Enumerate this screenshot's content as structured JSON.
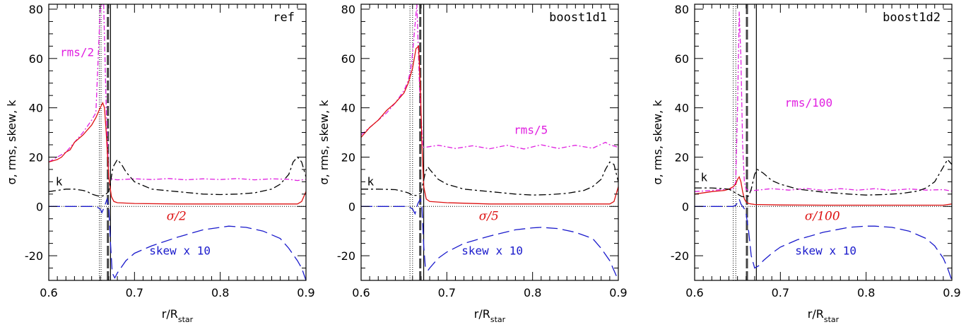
{
  "chart_data": [
    {
      "type": "line",
      "title": "ref",
      "xlabel": "r/R_star",
      "xlabel_main": "r/R",
      "xlabel_sub": "star",
      "ylabel": "σ, rms, skew, k",
      "xlim": [
        0.6,
        0.9
      ],
      "ylim": [
        -30,
        82
      ],
      "xticks": [
        "0.6",
        "0.7",
        "0.8",
        "0.9"
      ],
      "yticks": [
        "-20",
        "0",
        "20",
        "40",
        "60",
        "80"
      ],
      "vlines": [
        {
          "x": 0.659,
          "style": "dotted"
        },
        {
          "x": 0.661,
          "style": "dotted"
        },
        {
          "x": 0.669,
          "style": "dashed-thick"
        },
        {
          "x": 0.672,
          "style": "solid"
        }
      ],
      "zero_line": true,
      "annotations": [
        {
          "text": "rms/2",
          "x": 0.633,
          "y": 61,
          "color": "#e020e0"
        },
        {
          "text": "k",
          "x": 0.612,
          "y": 8.5,
          "color": "#000000"
        },
        {
          "text": "σ/2",
          "x": 0.749,
          "y": -5.5,
          "color": "#dd1111"
        },
        {
          "text": "skew x 10",
          "x": 0.753,
          "y": -19.5,
          "color": "#1a1acc"
        }
      ],
      "series": [
        {
          "name": "rms/2",
          "color": "#e020e0",
          "x": [
            0.6,
            0.61,
            0.62,
            0.63,
            0.64,
            0.65,
            0.655,
            0.66,
            0.662,
            0.664,
            0.667,
            0.67,
            0.675,
            0.68,
            0.7,
            0.72,
            0.74,
            0.76,
            0.78,
            0.8,
            0.82,
            0.84,
            0.86,
            0.88,
            0.89,
            0.9
          ],
          "y": [
            18,
            20,
            22,
            26,
            30,
            35,
            38,
            80,
            82,
            82,
            40,
            11.5,
            11,
            10.8,
            11.2,
            10.9,
            11.3,
            10.8,
            11.2,
            10.9,
            11.3,
            10.8,
            11.2,
            11,
            10.5,
            11
          ]
        },
        {
          "name": "σ/2",
          "color": "#dd1111",
          "x": [
            0.6,
            0.61,
            0.615,
            0.62,
            0.625,
            0.63,
            0.64,
            0.65,
            0.655,
            0.66,
            0.663,
            0.665,
            0.667,
            0.67,
            0.673,
            0.676,
            0.68,
            0.7,
            0.75,
            0.8,
            0.85,
            0.89,
            0.895,
            0.9
          ],
          "y": [
            18,
            19,
            20,
            22,
            23,
            26,
            29,
            33,
            36,
            40,
            42,
            40,
            30,
            12,
            4,
            2,
            1.5,
            1.2,
            1,
            1,
            1,
            1,
            2,
            6
          ]
        },
        {
          "name": "k",
          "color": "#000000",
          "x": [
            0.6,
            0.61,
            0.62,
            0.63,
            0.64,
            0.645,
            0.65,
            0.655,
            0.66,
            0.665,
            0.67,
            0.672,
            0.675,
            0.68,
            0.685,
            0.69,
            0.7,
            0.72,
            0.75,
            0.78,
            0.8,
            0.82,
            0.84,
            0.86,
            0.87,
            0.88,
            0.885,
            0.89,
            0.895,
            0.9
          ],
          "y": [
            6,
            6.5,
            7,
            7,
            6.5,
            6,
            5,
            4.5,
            4,
            4.5,
            6,
            10,
            16,
            19,
            17,
            14,
            10,
            7,
            6,
            5,
            4.8,
            5,
            5.5,
            7,
            9,
            13,
            18,
            20,
            18,
            12
          ]
        },
        {
          "name": "skew x 10",
          "color": "#1a1acc",
          "x": [
            0.6,
            0.63,
            0.655,
            0.66,
            0.662,
            0.665,
            0.668,
            0.67,
            0.672,
            0.674,
            0.677,
            0.68,
            0.69,
            0.7,
            0.72,
            0.75,
            0.78,
            0.8,
            0.81,
            0.83,
            0.85,
            0.87,
            0.88,
            0.89,
            0.895,
            0.9
          ],
          "y": [
            0,
            0,
            0,
            -1,
            -2.5,
            0,
            3,
            0,
            -15,
            -27,
            -29,
            -27,
            -22,
            -19,
            -16,
            -12.5,
            -9.5,
            -8.5,
            -8,
            -8.5,
            -10,
            -13,
            -17,
            -22,
            -25,
            -30
          ]
        }
      ]
    },
    {
      "type": "line",
      "title": "boost1d1",
      "xlabel": "r/R_star",
      "xlabel_main": "r/R",
      "xlabel_sub": "star",
      "ylabel": "σ, rms, skew, k",
      "xlim": [
        0.6,
        0.9
      ],
      "ylim": [
        -30,
        82
      ],
      "xticks": [
        "0.6",
        "0.7",
        "0.8",
        "0.9"
      ],
      "yticks": [
        "-20",
        "0",
        "20",
        "40",
        "60",
        "80"
      ],
      "vlines": [
        {
          "x": 0.657,
          "style": "dotted"
        },
        {
          "x": 0.66,
          "style": "dotted"
        },
        {
          "x": 0.669,
          "style": "dashed-thick"
        },
        {
          "x": 0.673,
          "style": "solid"
        }
      ],
      "zero_line": true,
      "annotations": [
        {
          "text": "rms/5",
          "x": 0.798,
          "y": 29.5,
          "color": "#e020e0"
        },
        {
          "text": "k",
          "x": 0.611,
          "y": 8.5,
          "color": "#000000"
        },
        {
          "text": "σ/5",
          "x": 0.749,
          "y": -5.5,
          "color": "#dd1111"
        },
        {
          "text": "skew x 10",
          "x": 0.753,
          "y": -19.5,
          "color": "#1a1acc"
        }
      ],
      "series": [
        {
          "name": "rms/5",
          "color": "#e020e0",
          "x": [
            0.6,
            0.61,
            0.62,
            0.63,
            0.64,
            0.65,
            0.655,
            0.658,
            0.66,
            0.662,
            0.665,
            0.668,
            0.672,
            0.675,
            0.69,
            0.71,
            0.73,
            0.75,
            0.77,
            0.79,
            0.81,
            0.83,
            0.85,
            0.87,
            0.885,
            0.89,
            0.9
          ],
          "y": [
            29,
            32,
            35,
            38,
            42,
            47,
            51,
            56,
            62,
            70,
            82,
            50,
            24,
            24,
            24.8,
            23.5,
            24.6,
            23.4,
            24.8,
            23.3,
            25,
            23.5,
            24.8,
            23.6,
            26,
            25,
            24
          ]
        },
        {
          "name": "σ/5",
          "color": "#dd1111",
          "x": [
            0.6,
            0.61,
            0.62,
            0.63,
            0.64,
            0.65,
            0.655,
            0.66,
            0.664,
            0.667,
            0.669,
            0.671,
            0.673,
            0.676,
            0.68,
            0.7,
            0.75,
            0.8,
            0.85,
            0.89,
            0.895,
            0.9
          ],
          "y": [
            28,
            32,
            35,
            39,
            42,
            46,
            50,
            56,
            64,
            65,
            50,
            25,
            8,
            3,
            2,
            1.5,
            1,
            1,
            1,
            1,
            2,
            8
          ]
        },
        {
          "name": "k",
          "color": "#000000",
          "x": [
            0.6,
            0.62,
            0.64,
            0.65,
            0.655,
            0.66,
            0.665,
            0.67,
            0.672,
            0.675,
            0.678,
            0.68,
            0.69,
            0.7,
            0.72,
            0.75,
            0.78,
            0.8,
            0.82,
            0.84,
            0.86,
            0.87,
            0.88,
            0.885,
            0.89,
            0.895,
            0.9
          ],
          "y": [
            7,
            7,
            6.8,
            6,
            5.5,
            4.5,
            4.5,
            5.5,
            9,
            14,
            16,
            15,
            11,
            9,
            7,
            6,
            5,
            4.6,
            4.8,
            5.3,
            6.5,
            8,
            11,
            15,
            18,
            17,
            10
          ]
        },
        {
          "name": "skew x 10",
          "color": "#1a1acc",
          "x": [
            0.6,
            0.63,
            0.655,
            0.66,
            0.663,
            0.666,
            0.669,
            0.671,
            0.673,
            0.675,
            0.678,
            0.68,
            0.69,
            0.7,
            0.72,
            0.75,
            0.78,
            0.8,
            0.81,
            0.83,
            0.85,
            0.87,
            0.88,
            0.89,
            0.895,
            0.9
          ],
          "y": [
            0,
            0,
            0,
            -1,
            -3,
            1,
            3,
            0,
            -16,
            -25,
            -26,
            -25,
            -21,
            -18.5,
            -15,
            -12,
            -9.5,
            -8.7,
            -8.5,
            -9,
            -10.5,
            -13,
            -17,
            -22,
            -26,
            -30
          ]
        }
      ]
    },
    {
      "type": "line",
      "title": "boost1d2",
      "xlabel": "r/R_star",
      "xlabel_main": "r/R",
      "xlabel_sub": "star",
      "ylabel": "σ, rms, skew, k",
      "xlim": [
        0.6,
        0.9
      ],
      "ylim": [
        -30,
        82
      ],
      "xticks": [
        "0.6",
        "0.7",
        "0.8",
        "0.9"
      ],
      "yticks": [
        "-20",
        "0",
        "20",
        "40",
        "60",
        "80"
      ],
      "vlines": [
        {
          "x": 0.645,
          "style": "dotted"
        },
        {
          "x": 0.648,
          "style": "dotted"
        },
        {
          "x": 0.661,
          "style": "dashed-thick"
        },
        {
          "x": 0.672,
          "style": "solid"
        }
      ],
      "zero_line": true,
      "annotations": [
        {
          "text": "rms/100",
          "x": 0.733,
          "y": 40.5,
          "color": "#e020e0"
        },
        {
          "text": "k",
          "x": 0.611,
          "y": 10.2,
          "color": "#000000"
        },
        {
          "text": "σ/100",
          "x": 0.749,
          "y": -5.5,
          "color": "#dd1111"
        },
        {
          "text": "skew x 10",
          "x": 0.753,
          "y": -19.5,
          "color": "#1a1acc"
        }
      ],
      "series": [
        {
          "name": "rms/100",
          "color": "#e020e0",
          "x": [
            0.6,
            0.62,
            0.64,
            0.645,
            0.648,
            0.65,
            0.652,
            0.654,
            0.656,
            0.658,
            0.66,
            0.663,
            0.67,
            0.69,
            0.71,
            0.73,
            0.75,
            0.77,
            0.79,
            0.81,
            0.83,
            0.85,
            0.87,
            0.89,
            0.9
          ],
          "y": [
            6,
            6.5,
            7,
            7,
            10,
            40,
            79,
            60,
            25,
            10,
            7,
            6.5,
            6.5,
            7.2,
            6.6,
            7.3,
            6.5,
            7.2,
            6.6,
            7.2,
            6.5,
            7.1,
            6.6,
            6.8,
            6.2
          ]
        },
        {
          "name": "σ/100",
          "color": "#dd1111",
          "x": [
            0.6,
            0.62,
            0.635,
            0.64,
            0.645,
            0.648,
            0.65,
            0.652,
            0.654,
            0.656,
            0.658,
            0.66,
            0.663,
            0.666,
            0.67,
            0.7,
            0.75,
            0.8,
            0.85,
            0.89,
            0.9
          ],
          "y": [
            5,
            6,
            6.5,
            7,
            8,
            9,
            11,
            12,
            10,
            6,
            3,
            1.8,
            1.2,
            1,
            0.8,
            0.6,
            0.5,
            0.5,
            0.5,
            0.5,
            1
          ]
        },
        {
          "name": "k",
          "color": "#000000",
          "x": [
            0.6,
            0.62,
            0.64,
            0.645,
            0.65,
            0.655,
            0.66,
            0.663,
            0.666,
            0.67,
            0.673,
            0.68,
            0.69,
            0.7,
            0.72,
            0.75,
            0.78,
            0.8,
            0.82,
            0.84,
            0.86,
            0.87,
            0.88,
            0.885,
            0.89,
            0.895,
            0.9
          ],
          "y": [
            7.5,
            7.5,
            7,
            6,
            5,
            4,
            3.8,
            4.2,
            7,
            13,
            15,
            13.5,
            10.5,
            9,
            7,
            5.8,
            5,
            4.6,
            4.8,
            5.2,
            6.2,
            7.5,
            10,
            13,
            16,
            19,
            17
          ]
        },
        {
          "name": "skew x 10",
          "color": "#1a1acc",
          "x": [
            0.6,
            0.63,
            0.645,
            0.648,
            0.65,
            0.652,
            0.654,
            0.656,
            0.658,
            0.66,
            0.663,
            0.666,
            0.67,
            0.675,
            0.68,
            0.69,
            0.7,
            0.72,
            0.75,
            0.78,
            0.8,
            0.81,
            0.83,
            0.85,
            0.87,
            0.88,
            0.89,
            0.895,
            0.9
          ],
          "y": [
            0,
            0,
            0,
            0.5,
            1.5,
            3,
            1,
            0,
            -1,
            -3,
            -10,
            -20,
            -25,
            -24,
            -22,
            -19,
            -16.5,
            -13.5,
            -10.5,
            -8.5,
            -8,
            -8,
            -8.5,
            -10,
            -13,
            -16,
            -21,
            -25,
            -30
          ]
        }
      ]
    }
  ]
}
